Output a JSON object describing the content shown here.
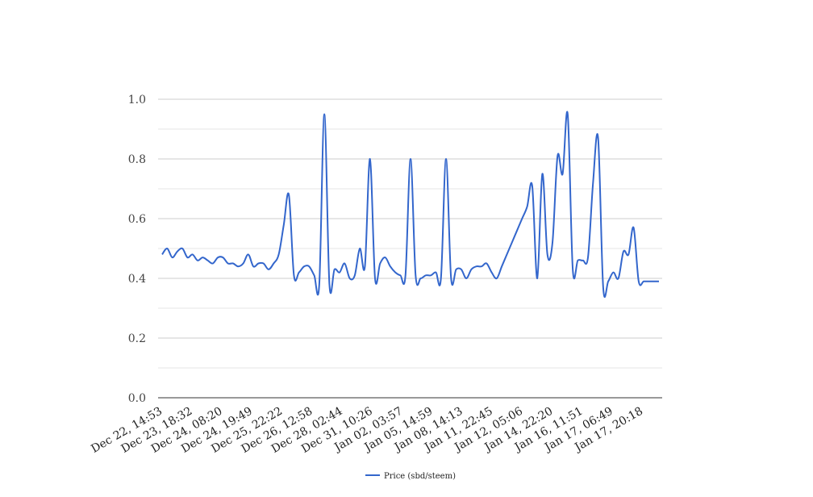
{
  "chart_data": {
    "type": "line",
    "title": "",
    "xlabel": "",
    "ylabel": "",
    "ylim": [
      0,
      1.0
    ],
    "y_ticks": [
      "0.0",
      "0.2",
      "0.4",
      "0.6",
      "0.8",
      "1.0"
    ],
    "x_tick_labels": [
      "Dec 22, 14:53",
      "Dec 23, 18:32",
      "Dec 24, 08:20",
      "Dec 24, 19:49",
      "Dec 25, 22:22",
      "Dec 26, 12:58",
      "Dec 28, 02:44",
      "Dec 31, 10:26",
      "Jan 02, 03:57",
      "Jan 05, 14:59",
      "Jan 08, 14:13",
      "Jan 11, 22:45",
      "Jan 12, 05:06",
      "Jan 14, 22:20",
      "Jan 16, 11:51",
      "Jan 17, 06:49",
      "Jan 17, 20:18"
    ],
    "grid": true,
    "legend_position": "bottom",
    "colors": {
      "series": "#3366cc",
      "grid": "#cccccc",
      "minor_grid": "#e6e6e6",
      "axis": "#333333"
    },
    "series": [
      {
        "name": "Price (sbd/steem)",
        "values": [
          0.48,
          0.5,
          0.47,
          0.49,
          0.5,
          0.47,
          0.48,
          0.46,
          0.47,
          0.46,
          0.45,
          0.47,
          0.47,
          0.45,
          0.45,
          0.44,
          0.45,
          0.48,
          0.44,
          0.45,
          0.45,
          0.43,
          0.45,
          0.48,
          0.58,
          0.68,
          0.41,
          0.42,
          0.44,
          0.44,
          0.41,
          0.38,
          0.95,
          0.38,
          0.43,
          0.42,
          0.45,
          0.4,
          0.41,
          0.5,
          0.44,
          0.8,
          0.4,
          0.45,
          0.47,
          0.44,
          0.42,
          0.41,
          0.41,
          0.8,
          0.41,
          0.4,
          0.41,
          0.41,
          0.42,
          0.4,
          0.8,
          0.4,
          0.43,
          0.43,
          0.4,
          0.43,
          0.44,
          0.44,
          0.45,
          0.42,
          0.4,
          0.44,
          0.48,
          0.52,
          0.56,
          0.6,
          0.64,
          0.71,
          0.4,
          0.75,
          0.48,
          0.52,
          0.81,
          0.75,
          0.95,
          0.43,
          0.46,
          0.46,
          0.47,
          0.72,
          0.87,
          0.37,
          0.39,
          0.42,
          0.4,
          0.49,
          0.48,
          0.57,
          0.39,
          0.39,
          0.39,
          0.39,
          0.39
        ]
      }
    ]
  }
}
